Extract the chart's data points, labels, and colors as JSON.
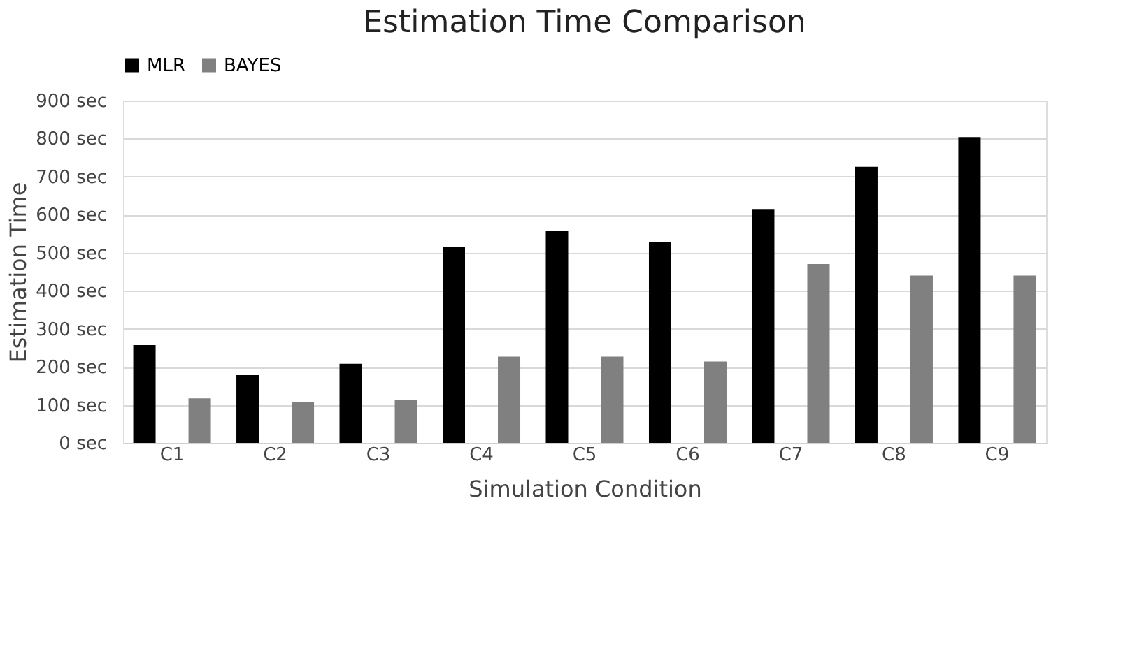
{
  "chart_data": {
    "type": "bar",
    "title": "Estimation Time Comparison",
    "xlabel": "Simulation Condition",
    "ylabel": "Estimation Time",
    "categories": [
      "C1",
      "C2",
      "C3",
      "C4",
      "C5",
      "C6",
      "C7",
      "C8",
      "C9"
    ],
    "series": [
      {
        "name": "MLR",
        "color": "#000000",
        "values": [
          257,
          178,
          208,
          516,
          557,
          528,
          615,
          726,
          804
        ]
      },
      {
        "name": "BAYES",
        "color": "#808080",
        "values": [
          117,
          107,
          112,
          227,
          227,
          214,
          470,
          440,
          440
        ]
      }
    ],
    "ylim": [
      0,
      900
    ],
    "yticks": [
      {
        "value": 0,
        "label": "0 sec"
      },
      {
        "value": 100,
        "label": "100 sec"
      },
      {
        "value": 200,
        "label": "200 sec"
      },
      {
        "value": 300,
        "label": "300 sec"
      },
      {
        "value": 400,
        "label": "400 sec"
      },
      {
        "value": 500,
        "label": "500 sec"
      },
      {
        "value": 600,
        "label": "600 sec"
      },
      {
        "value": 700,
        "label": "700 sec"
      },
      {
        "value": 800,
        "label": "800 sec"
      },
      {
        "value": 900,
        "label": "900 sec"
      }
    ],
    "grid": "y",
    "legend": "top"
  }
}
